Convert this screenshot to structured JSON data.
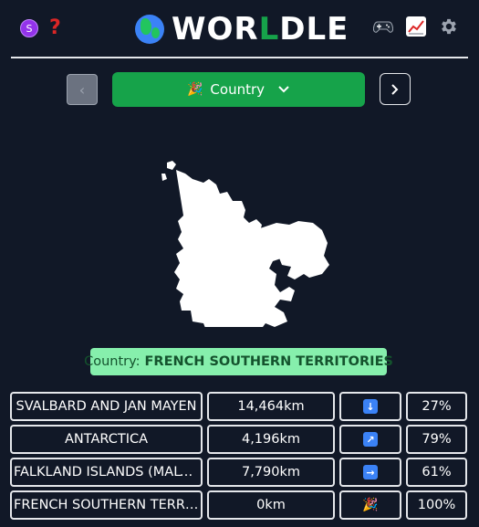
{
  "header": {
    "avatar_initial": "S",
    "help_icon": "question-mark-icon",
    "logo_prefix": "WOR",
    "logo_highlight": "L",
    "logo_suffix": "DLE",
    "icons": [
      "controller-icon",
      "chart-icon",
      "gear-icon"
    ]
  },
  "selector": {
    "mode_label": "Country",
    "mode_icon": "party-popper-icon"
  },
  "answer": {
    "label": "Country:",
    "value": "FRENCH SOUTHERN TERRITORIES"
  },
  "guesses": [
    {
      "name": "SVALBARD AND JAN MAYEN",
      "distance": "14,464km",
      "direction": "arrow-down-icon",
      "percent": "27%"
    },
    {
      "name": "ANTARCTICA",
      "distance": "4,196km",
      "direction": "arrow-up-right-icon",
      "percent": "79%"
    },
    {
      "name": "FALKLAND ISLANDS (MALVINAS)",
      "distance": "7,790km",
      "direction": "arrow-right-icon",
      "percent": "61%"
    },
    {
      "name": "FRENCH SOUTHERN TERRITORIES",
      "distance": "0km",
      "direction": "party-popper-icon",
      "percent": "100%"
    }
  ],
  "colors": {
    "background": "#111827",
    "accent_green": "#16a34a",
    "answer_bg": "#86efac",
    "direction_blue": "#3b82f6"
  }
}
